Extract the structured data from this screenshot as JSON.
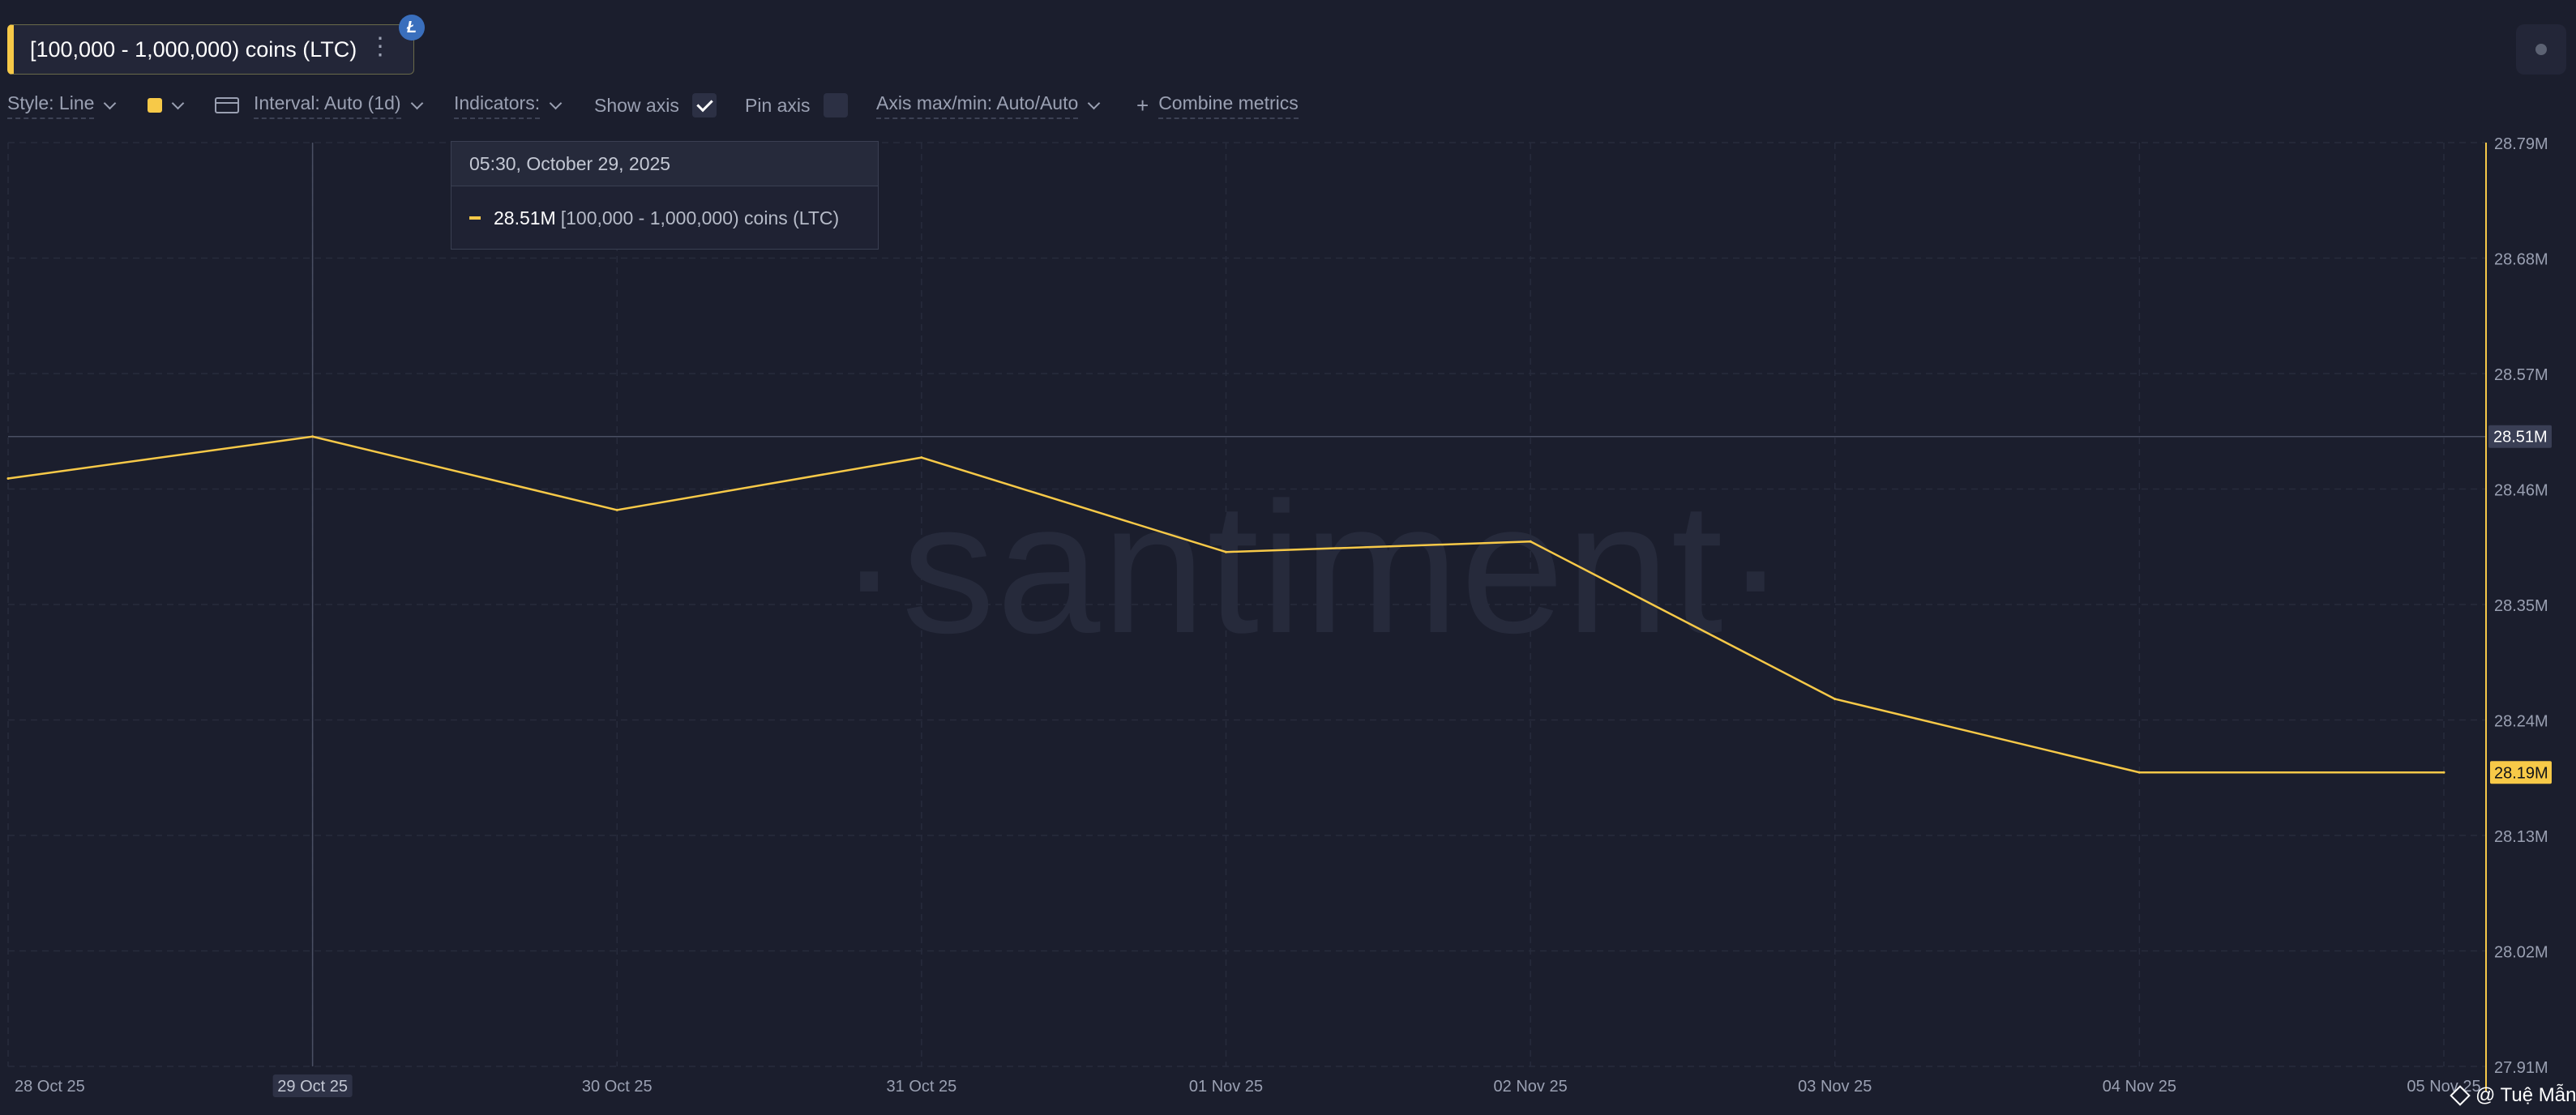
{
  "metric": {
    "title": "[100,000 - 1,000,000) coins (LTC)",
    "badge_letter": "Ł"
  },
  "toolbar": {
    "style_label": "Style: Line",
    "interval_label": "Interval: Auto (1d)",
    "indicators_label": "Indicators:",
    "show_axis_label": "Show axis",
    "show_axis_checked": true,
    "pin_axis_label": "Pin axis",
    "pin_axis_checked": false,
    "axis_maxmin_label": "Axis max/min: Auto/Auto",
    "combine_label": "Combine metrics",
    "series_color": "#f7c948"
  },
  "tooltip": {
    "date": "05:30, October 29, 2025",
    "value": "28.51M",
    "series": "[100,000  - 1,000,000) coins (LTC)"
  },
  "watermark": {
    "brand": "·santiment·",
    "user": "@ Tuệ Mẫn"
  },
  "chart_data": {
    "type": "line",
    "x": [
      "28 Oct 25",
      "29 Oct 25",
      "30 Oct 25",
      "31 Oct 25",
      "01 Nov 25",
      "02 Nov 25",
      "03 Nov 25",
      "04 Nov 25",
      "05 Nov 25"
    ],
    "series": [
      {
        "name": "[100,000 - 1,000,000) coins (LTC)",
        "color": "#f7c948",
        "values": [
          28.47,
          28.51,
          28.44,
          28.49,
          28.4,
          28.41,
          28.26,
          28.19,
          28.19
        ]
      }
    ],
    "y_ticks": [
      "28.79M",
      "28.68M",
      "28.57M",
      "28.46M",
      "28.35M",
      "28.24M",
      "28.13M",
      "28.02M",
      "27.91M"
    ],
    "ylim": [
      27.91,
      28.79
    ],
    "highlighted_x": "29 Oct 25",
    "crosshair_label": "28.51M",
    "last_value_label": "28.19M",
    "grid": true
  }
}
